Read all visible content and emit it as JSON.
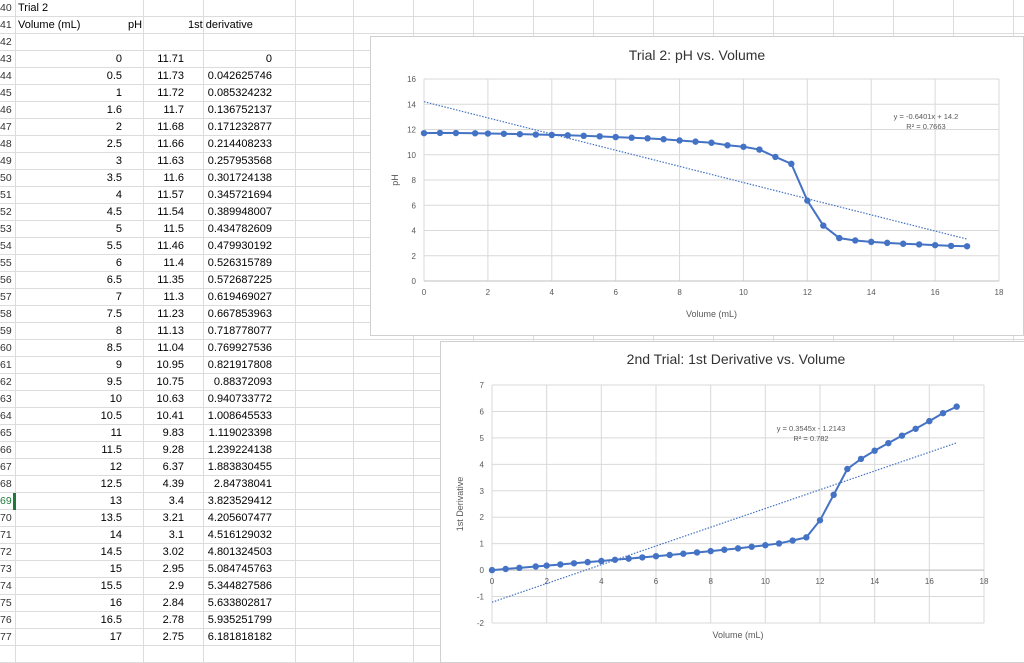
{
  "sheet": {
    "row_numbers": [
      "40",
      "41",
      "42",
      "43",
      "44",
      "45",
      "46",
      "47",
      "48",
      "49",
      "50",
      "51",
      "52",
      "53",
      "54",
      "55",
      "56",
      "57",
      "58",
      "59",
      "60",
      "61",
      "62",
      "63",
      "64",
      "65",
      "66",
      "67",
      "68",
      "69",
      "70",
      "71",
      "72",
      "73",
      "74",
      "75",
      "76",
      "77"
    ],
    "selected_row": "69",
    "trial_label": "Trial 2",
    "headers": {
      "volume": "Volume (mL)",
      "ph": "pH",
      "derivative": "1st derivative"
    },
    "rows": [
      [
        "0",
        "11.71",
        "0"
      ],
      [
        "0.5",
        "11.73",
        "0.042625746"
      ],
      [
        "1",
        "11.72",
        "0.085324232"
      ],
      [
        "1.6",
        "11.7",
        "0.136752137"
      ],
      [
        "2",
        "11.68",
        "0.171232877"
      ],
      [
        "2.5",
        "11.66",
        "0.214408233"
      ],
      [
        "3",
        "11.63",
        "0.257953568"
      ],
      [
        "3.5",
        "11.6",
        "0.301724138"
      ],
      [
        "4",
        "11.57",
        "0.345721694"
      ],
      [
        "4.5",
        "11.54",
        "0.389948007"
      ],
      [
        "5",
        "11.5",
        "0.434782609"
      ],
      [
        "5.5",
        "11.46",
        "0.479930192"
      ],
      [
        "6",
        "11.4",
        "0.526315789"
      ],
      [
        "6.5",
        "11.35",
        "0.572687225"
      ],
      [
        "7",
        "11.3",
        "0.619469027"
      ],
      [
        "7.5",
        "11.23",
        "0.667853963"
      ],
      [
        "8",
        "11.13",
        "0.718778077"
      ],
      [
        "8.5",
        "11.04",
        "0.769927536"
      ],
      [
        "9",
        "10.95",
        "0.821917808"
      ],
      [
        "9.5",
        "10.75",
        "0.88372093"
      ],
      [
        "10",
        "10.63",
        "0.940733772"
      ],
      [
        "10.5",
        "10.41",
        "1.008645533"
      ],
      [
        "11",
        "9.83",
        "1.119023398"
      ],
      [
        "11.5",
        "9.28",
        "1.239224138"
      ],
      [
        "12",
        "6.37",
        "1.883830455"
      ],
      [
        "12.5",
        "4.39",
        "2.84738041"
      ],
      [
        "13",
        "3.4",
        "3.823529412"
      ],
      [
        "13.5",
        "3.21",
        "4.205607477"
      ],
      [
        "14",
        "3.1",
        "4.516129032"
      ],
      [
        "14.5",
        "3.02",
        "4.801324503"
      ],
      [
        "15",
        "2.95",
        "5.084745763"
      ],
      [
        "15.5",
        "2.9",
        "5.344827586"
      ],
      [
        "16",
        "2.84",
        "5.633802817"
      ],
      [
        "16.5",
        "2.78",
        "5.935251799"
      ],
      [
        "17",
        "2.75",
        "6.181818182"
      ]
    ]
  },
  "chart_data": [
    {
      "type": "scatter",
      "title": "Trial 2: pH vs. Volume",
      "xlabel": "Volume (mL)",
      "ylabel": "pH",
      "xlim": [
        0,
        18
      ],
      "ylim": [
        0,
        16
      ],
      "xticks": [
        "0",
        "2",
        "4",
        "6",
        "8",
        "10",
        "12",
        "14",
        "16",
        "18"
      ],
      "yticks": [
        "0",
        "2",
        "4",
        "6",
        "8",
        "10",
        "12",
        "14",
        "16"
      ],
      "trendline": {
        "slope": -0.6401,
        "intercept": 14.2,
        "x_range": [
          0,
          17
        ]
      },
      "equation": "y = -0.6401x + 14.2",
      "r2": "R² = 0.7663",
      "x": [
        0,
        0.5,
        1,
        1.6,
        2,
        2.5,
        3,
        3.5,
        4,
        4.5,
        5,
        5.5,
        6,
        6.5,
        7,
        7.5,
        8,
        8.5,
        9,
        9.5,
        10,
        10.5,
        11,
        11.5,
        12,
        12.5,
        13,
        13.5,
        14,
        14.5,
        15,
        15.5,
        16,
        16.5,
        17
      ],
      "y": [
        11.71,
        11.73,
        11.72,
        11.7,
        11.68,
        11.66,
        11.63,
        11.6,
        11.57,
        11.54,
        11.5,
        11.46,
        11.4,
        11.35,
        11.3,
        11.23,
        11.13,
        11.04,
        10.95,
        10.75,
        10.63,
        10.41,
        9.83,
        9.28,
        6.37,
        4.39,
        3.4,
        3.21,
        3.1,
        3.02,
        2.95,
        2.9,
        2.84,
        2.78,
        2.75
      ],
      "color": "#4472c4",
      "grid": true
    },
    {
      "type": "scatter",
      "title": "2nd Trial: 1st Derivative vs. Volume",
      "xlabel": "Volume (mL)",
      "ylabel": "1st Derivative",
      "xlim": [
        0,
        18
      ],
      "ylim": [
        -2,
        7
      ],
      "xticks": [
        "0",
        "2",
        "4",
        "6",
        "8",
        "10",
        "12",
        "14",
        "16",
        "18"
      ],
      "yticks": [
        "-2",
        "-1",
        "0",
        "1",
        "2",
        "3",
        "4",
        "5",
        "6",
        "7"
      ],
      "trendline": {
        "slope": 0.3545,
        "intercept": -1.2143,
        "x_range": [
          0,
          17
        ]
      },
      "equation": "y = 0.3545x - 1.2143",
      "r2": "R² = 0.782",
      "x": [
        0,
        0.5,
        1,
        1.6,
        2,
        2.5,
        3,
        3.5,
        4,
        4.5,
        5,
        5.5,
        6,
        6.5,
        7,
        7.5,
        8,
        8.5,
        9,
        9.5,
        10,
        10.5,
        11,
        11.5,
        12,
        12.5,
        13,
        13.5,
        14,
        14.5,
        15,
        15.5,
        16,
        16.5,
        17
      ],
      "y": [
        0,
        0.042625746,
        0.085324232,
        0.136752137,
        0.171232877,
        0.214408233,
        0.257953568,
        0.301724138,
        0.345721694,
        0.389948007,
        0.434782609,
        0.479930192,
        0.526315789,
        0.572687225,
        0.619469027,
        0.667853963,
        0.718778077,
        0.769927536,
        0.821917808,
        0.88372093,
        0.940733772,
        1.008645533,
        1.119023398,
        1.239224138,
        1.883830455,
        2.84738041,
        3.823529412,
        4.205607477,
        4.516129032,
        4.801324503,
        5.084745763,
        5.344827586,
        5.633802817,
        5.935251799,
        6.181818182
      ],
      "color": "#4472c4",
      "grid": true
    }
  ]
}
